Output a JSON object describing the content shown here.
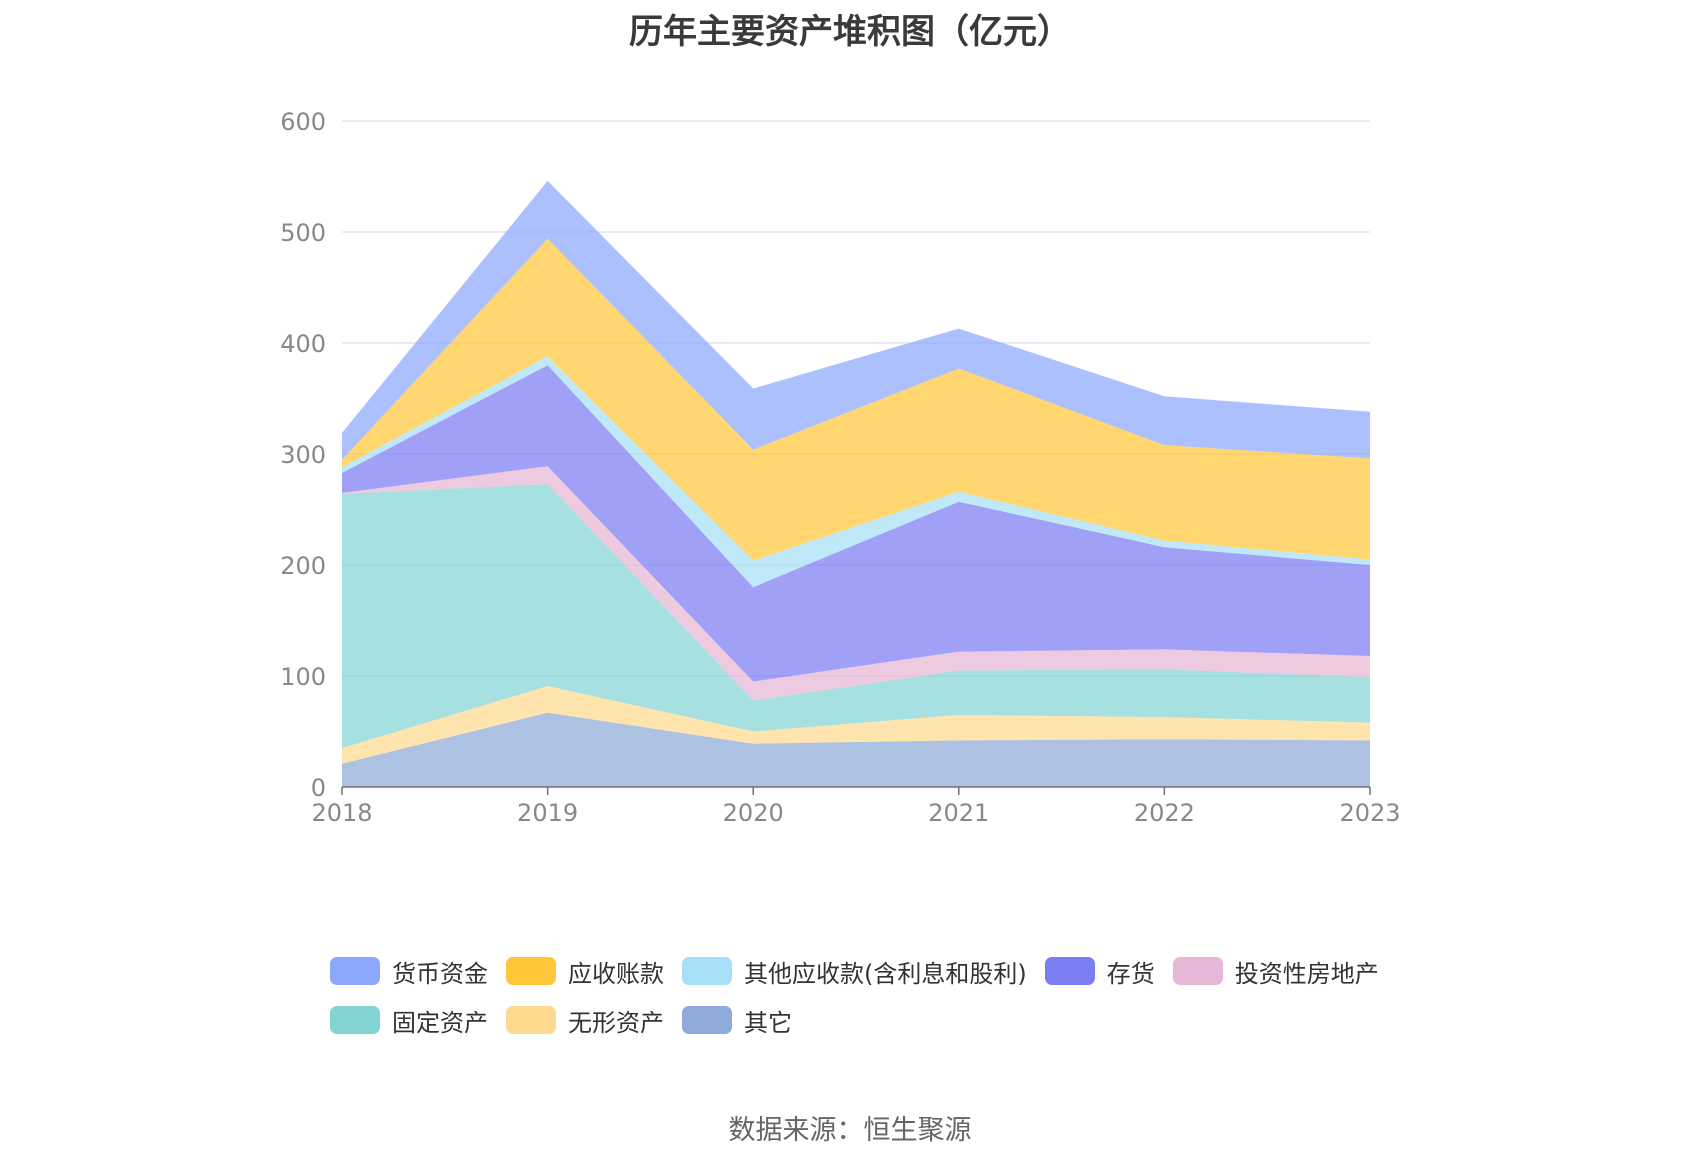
{
  "title": "历年主要资产堆积图（亿元）",
  "source": "数据来源：恒生聚源",
  "chart_data": {
    "type": "area",
    "stacked": true,
    "x": [
      "2018",
      "2019",
      "2020",
      "2021",
      "2022",
      "2023"
    ],
    "ylim": [
      0,
      600
    ],
    "yticks": [
      "0",
      "100",
      "200",
      "300",
      "400",
      "500",
      "600"
    ],
    "grid": true,
    "legend_position": "bottom",
    "series": [
      {
        "name": "其它",
        "color": "#8eaad8",
        "values": [
          21,
          67,
          39,
          42,
          43,
          42
        ]
      },
      {
        "name": "无形资产",
        "color": "#ffd98e",
        "values": [
          14,
          24,
          11,
          23,
          20,
          16
        ]
      },
      {
        "name": "固定资产",
        "color": "#84d4d4",
        "values": [
          229,
          182,
          28,
          40,
          43,
          41
        ]
      },
      {
        "name": "投资性房地产",
        "color": "#e8b6d6",
        "values": [
          1,
          16,
          17,
          17,
          18,
          19
        ]
      },
      {
        "name": "存货",
        "color": "#7b7df2",
        "values": [
          18,
          91,
          85,
          135,
          92,
          82
        ]
      },
      {
        "name": "其他应收款(含利息和股利)",
        "color": "#a6dff7",
        "values": [
          5,
          8,
          24,
          9,
          6,
          5
        ]
      },
      {
        "name": "应收账款",
        "color": "#ffc639",
        "values": [
          7,
          106,
          100,
          111,
          86,
          91
        ]
      },
      {
        "name": "货币资金",
        "color": "#8ca8fd",
        "values": [
          24,
          52,
          55,
          36,
          44,
          42
        ]
      }
    ]
  },
  "legend": {
    "row1": [
      "货币资金",
      "应收账款",
      "其他应收款(含利息和股利)",
      "存货",
      "投资性房地产"
    ],
    "row2": [
      "固定资产",
      "无形资产",
      "其它"
    ]
  }
}
